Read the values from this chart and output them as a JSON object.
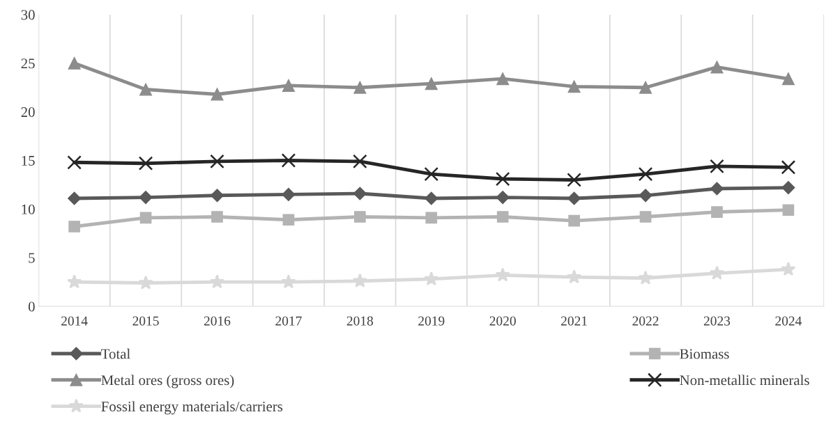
{
  "chart_data": {
    "type": "line",
    "categories": [
      "2014",
      "2015",
      "2016",
      "2017",
      "2018",
      "2019",
      "2020",
      "2021",
      "2022",
      "2023",
      "2024"
    ],
    "ylim": [
      0,
      30
    ],
    "yticks": [
      0,
      5,
      10,
      15,
      20,
      25,
      30
    ],
    "grid": "x",
    "legend": "bottom",
    "series": [
      {
        "name": "Total",
        "color": "#595959",
        "marker": "diamond",
        "values": [
          11.1,
          11.2,
          11.4,
          11.5,
          11.6,
          11.1,
          11.2,
          11.1,
          11.4,
          12.1,
          12.2
        ]
      },
      {
        "name": "Biomass",
        "color": "#b3b3b3",
        "marker": "square",
        "values": [
          8.2,
          9.1,
          9.2,
          8.9,
          9.2,
          9.1,
          9.2,
          8.8,
          9.2,
          9.7,
          9.9
        ]
      },
      {
        "name": "Metal ores (gross ores)",
        "color": "#8c8c8c",
        "marker": "triangle",
        "values": [
          25.0,
          22.3,
          21.8,
          22.7,
          22.5,
          22.9,
          23.4,
          22.6,
          22.5,
          24.6,
          23.4
        ]
      },
      {
        "name": "Non-metallic minerals",
        "color": "#262626",
        "marker": "cross",
        "values": [
          14.8,
          14.7,
          14.9,
          15.0,
          14.9,
          13.6,
          13.1,
          13.0,
          13.6,
          14.4,
          14.3
        ]
      },
      {
        "name": "Fossil energy materials/carriers",
        "color": "#d9d9d9",
        "marker": "star",
        "values": [
          2.5,
          2.4,
          2.5,
          2.5,
          2.6,
          2.8,
          3.2,
          3.0,
          2.9,
          3.4,
          3.8
        ]
      }
    ]
  }
}
